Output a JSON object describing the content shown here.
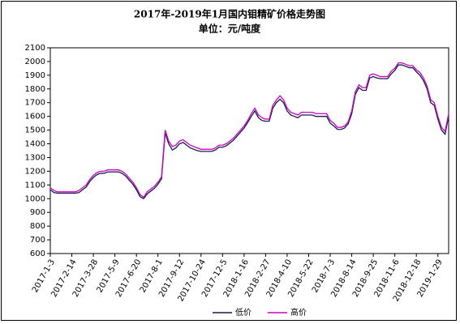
{
  "chart_data": {
    "type": "line",
    "title": "2017年-2019年1月国内钼精矿价格走势图",
    "subtitle": "单位：元/吨度",
    "categories": [
      "2017-1-3",
      null,
      null,
      null,
      null,
      null,
      "2017-2-14",
      null,
      null,
      null,
      null,
      null,
      "2017-3-28",
      null,
      null,
      null,
      null,
      null,
      "2017-5-9",
      null,
      null,
      null,
      null,
      null,
      "2017-6-20",
      null,
      null,
      null,
      null,
      null,
      "2017-8-1",
      null,
      null,
      null,
      null,
      null,
      "2017-9-12",
      null,
      null,
      null,
      null,
      null,
      "2017-10-24",
      null,
      null,
      null,
      null,
      null,
      "2017-12-5",
      null,
      null,
      null,
      null,
      null,
      "2018-1-16",
      null,
      null,
      null,
      null,
      null,
      "2018-2-27",
      null,
      null,
      null,
      null,
      null,
      "2018-4-10",
      null,
      null,
      null,
      null,
      null,
      "2018-5-22",
      null,
      null,
      null,
      null,
      null,
      "2018-7-3",
      null,
      null,
      null,
      null,
      null,
      "2018-8-14",
      null,
      null,
      null,
      null,
      null,
      "2018-9-25",
      null,
      null,
      null,
      null,
      null,
      "2018-11-6",
      null,
      null,
      null,
      null,
      null,
      "2018-12-18",
      null,
      null,
      null,
      null,
      null,
      "2019-1-29",
      null,
      null,
      null
    ],
    "series": [
      {
        "name": "低价",
        "color": "#1a1a4a",
        "values": [
          1065,
          1045,
          1040,
          1040,
          1040,
          1040,
          1040,
          1040,
          1045,
          1065,
          1085,
          1125,
          1155,
          1175,
          1185,
          1185,
          1195,
          1195,
          1195,
          1195,
          1185,
          1165,
          1135,
          1105,
          1065,
          1015,
          1000,
          1035,
          1055,
          1075,
          1105,
          1145,
          1480,
          1400,
          1355,
          1370,
          1400,
          1410,
          1390,
          1370,
          1360,
          1350,
          1345,
          1345,
          1345,
          1345,
          1355,
          1375,
          1375,
          1385,
          1405,
          1425,
          1455,
          1485,
          1515,
          1555,
          1600,
          1640,
          1590,
          1570,
          1565,
          1565,
          1660,
          1700,
          1725,
          1700,
          1640,
          1610,
          1600,
          1590,
          1610,
          1610,
          1610,
          1610,
          1600,
          1600,
          1600,
          1600,
          1550,
          1530,
          1505,
          1505,
          1515,
          1545,
          1620,
          1760,
          1810,
          1790,
          1790,
          1880,
          1890,
          1880,
          1875,
          1875,
          1875,
          1910,
          1935,
          1975,
          1975,
          1965,
          1955,
          1955,
          1925,
          1900,
          1860,
          1800,
          1700,
          1680,
          1580,
          1500,
          1470,
          1600
        ]
      },
      {
        "name": "高价",
        "color": "#cc00cc",
        "values": [
          1080,
          1060,
          1050,
          1050,
          1050,
          1050,
          1050,
          1050,
          1060,
          1080,
          1100,
          1140,
          1170,
          1190,
          1200,
          1200,
          1210,
          1210,
          1210,
          1210,
          1200,
          1180,
          1150,
          1120,
          1080,
          1030,
          1010,
          1050,
          1070,
          1090,
          1120,
          1160,
          1500,
          1420,
          1380,
          1390,
          1420,
          1430,
          1410,
          1390,
          1380,
          1370,
          1360,
          1360,
          1360,
          1360,
          1370,
          1390,
          1390,
          1400,
          1420,
          1440,
          1470,
          1500,
          1530,
          1570,
          1620,
          1660,
          1610,
          1590,
          1580,
          1580,
          1680,
          1720,
          1750,
          1720,
          1660,
          1630,
          1620,
          1610,
          1630,
          1630,
          1630,
          1630,
          1620,
          1620,
          1620,
          1620,
          1570,
          1550,
          1520,
          1520,
          1530,
          1560,
          1640,
          1780,
          1830,
          1810,
          1810,
          1900,
          1910,
          1900,
          1890,
          1890,
          1890,
          1930,
          1950,
          1990,
          1990,
          1980,
          1970,
          1970,
          1940,
          1920,
          1880,
          1820,
          1720,
          1700,
          1600,
          1520,
          1490,
          1620
        ]
      }
    ],
    "ylim": [
      600,
      2100
    ],
    "yticks": [
      600,
      700,
      800,
      900,
      1000,
      1100,
      1200,
      1300,
      1400,
      1500,
      1600,
      1700,
      1800,
      1900,
      2000,
      2100
    ],
    "grid": false
  }
}
